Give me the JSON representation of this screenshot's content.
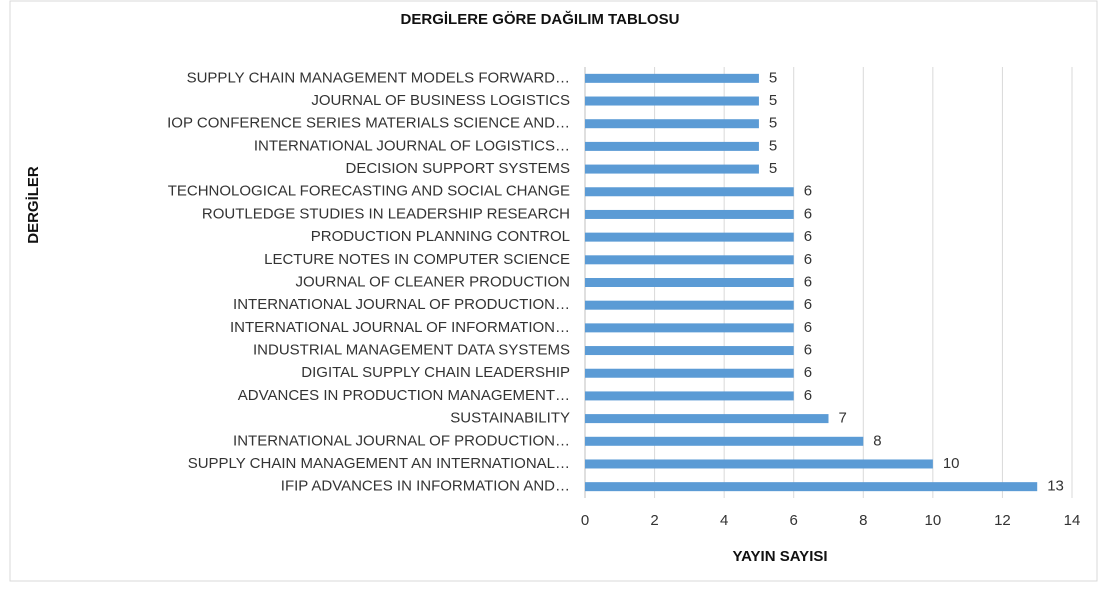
{
  "chart_data": {
    "type": "barh",
    "title": "DERGİLERE GÖRE DAĞILIM TABLOSU",
    "x_label": "YAYIN SAYISI",
    "y_label": "DERGİLER",
    "categories": [
      "SUPPLY CHAIN MANAGEMENT MODELS FORWARD…",
      "JOURNAL OF BUSINESS LOGISTICS",
      "IOP CONFERENCE SERIES MATERIALS SCIENCE AND…",
      "INTERNATIONAL JOURNAL OF LOGISTICS…",
      "DECISION SUPPORT SYSTEMS",
      "TECHNOLOGICAL FORECASTING AND SOCIAL CHANGE",
      "ROUTLEDGE STUDIES IN LEADERSHIP RESEARCH",
      "PRODUCTION PLANNING CONTROL",
      "LECTURE NOTES IN COMPUTER SCIENCE",
      "JOURNAL OF CLEANER PRODUCTION",
      "INTERNATIONAL JOURNAL OF PRODUCTION…",
      "INTERNATIONAL JOURNAL OF INFORMATION…",
      "INDUSTRIAL MANAGEMENT DATA SYSTEMS",
      "DIGITAL SUPPLY CHAIN LEADERSHIP",
      "ADVANCES IN PRODUCTION MANAGEMENT…",
      "SUSTAINABILITY",
      "INTERNATIONAL JOURNAL OF PRODUCTION…",
      "SUPPLY CHAIN MANAGEMENT AN INTERNATIONAL…",
      "IFIP ADVANCES IN INFORMATION AND…"
    ],
    "values": [
      5,
      5,
      5,
      5,
      5,
      6,
      6,
      6,
      6,
      6,
      6,
      6,
      6,
      6,
      6,
      7,
      8,
      10,
      13
    ],
    "color": "#5b9bd5",
    "xlim": [
      0,
      14
    ],
    "xticks": [
      0,
      2,
      4,
      6,
      8,
      10,
      12,
      14
    ],
    "grid": true
  }
}
